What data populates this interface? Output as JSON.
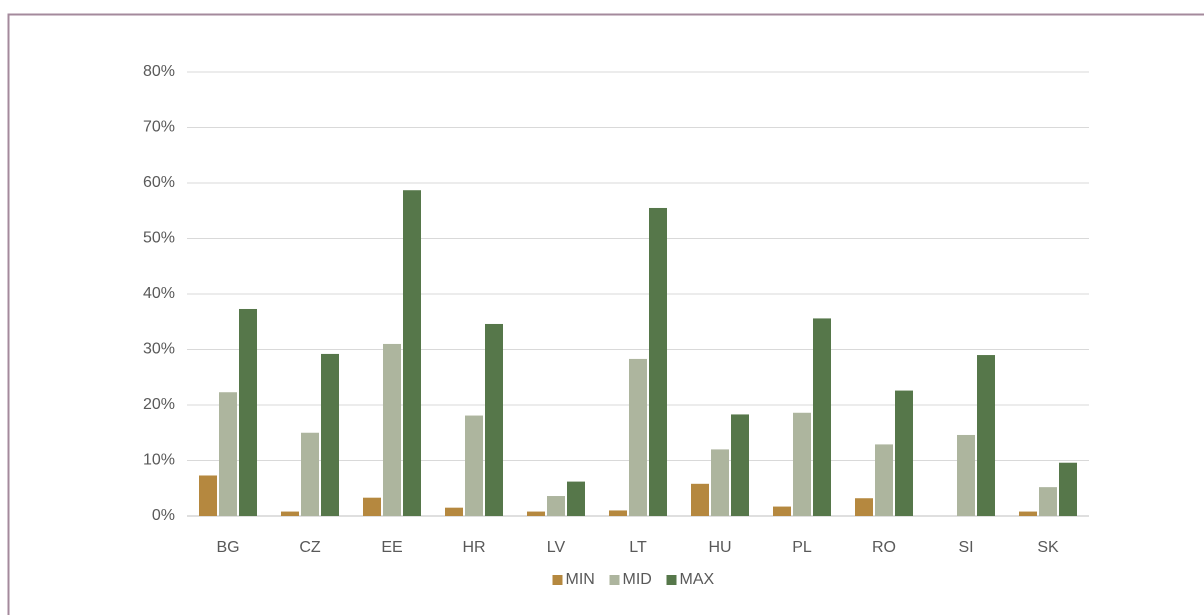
{
  "chart_data": {
    "type": "bar",
    "categories": [
      "BG",
      "CZ",
      "EE",
      "HR",
      "LV",
      "LT",
      "HU",
      "PL",
      "RO",
      "SI",
      "SK"
    ],
    "series": [
      {
        "name": "MIN",
        "color": "#b5883f",
        "values": [
          7.3,
          0.8,
          3.3,
          1.5,
          0.8,
          1.0,
          5.8,
          1.7,
          3.2,
          0,
          0.8
        ]
      },
      {
        "name": "MID",
        "color": "#adb59e",
        "values": [
          22.3,
          15.0,
          31.0,
          18.1,
          3.6,
          28.3,
          12.0,
          18.6,
          12.9,
          14.6,
          5.2
        ]
      },
      {
        "name": "MAX",
        "color": "#56774a",
        "values": [
          37.3,
          29.2,
          58.7,
          34.6,
          6.2,
          55.5,
          18.3,
          35.6,
          22.6,
          29.0,
          9.6
        ]
      }
    ],
    "ylim": [
      0,
      80
    ],
    "yticks": [
      {
        "value": 0,
        "label": "0%"
      },
      {
        "value": 10,
        "label": "10%"
      },
      {
        "value": 20,
        "label": "20%"
      },
      {
        "value": 30,
        "label": "30%"
      },
      {
        "value": 40,
        "label": "40%"
      },
      {
        "value": 50,
        "label": "50%"
      },
      {
        "value": 60,
        "label": "60%"
      },
      {
        "value": 70,
        "label": "70%"
      },
      {
        "value": 80,
        "label": "80%"
      }
    ],
    "grid": true,
    "legend": "bottom"
  }
}
